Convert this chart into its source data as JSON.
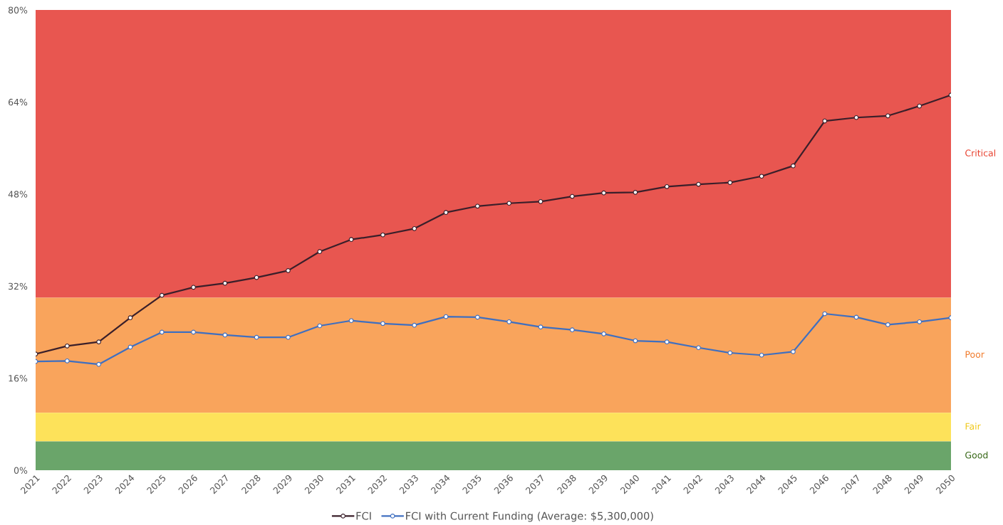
{
  "chart_data": {
    "type": "line",
    "categories": [
      "2021",
      "2022",
      "2023",
      "2024",
      "2025",
      "2026",
      "2027",
      "2028",
      "2029",
      "2030",
      "2031",
      "2032",
      "2033",
      "2034",
      "2035",
      "2036",
      "2037",
      "2038",
      "2039",
      "2040",
      "2041",
      "2042",
      "2043",
      "2044",
      "2045",
      "2046",
      "2047",
      "2048",
      "2049",
      "2050"
    ],
    "series": [
      {
        "name": "FCI",
        "color": "#3a1f2a",
        "values": [
          20.2,
          21.6,
          22.3,
          26.5,
          30.4,
          31.8,
          32.5,
          33.5,
          34.7,
          38.0,
          40.1,
          40.9,
          42.0,
          44.8,
          45.9,
          46.4,
          46.7,
          47.6,
          48.2,
          48.3,
          49.3,
          49.7,
          50.0,
          51.1,
          52.9,
          60.7,
          61.3,
          61.6,
          63.3,
          65.2
        ]
      },
      {
        "name": "FCI with Current Funding (Average: $5,300,000)",
        "color": "#3f6fc0",
        "values": [
          18.9,
          19.0,
          18.4,
          21.4,
          24.0,
          24.0,
          23.5,
          23.1,
          23.1,
          25.1,
          26.0,
          25.5,
          25.2,
          26.7,
          26.6,
          25.8,
          24.9,
          24.4,
          23.7,
          22.5,
          22.3,
          21.3,
          20.4,
          20.0,
          20.6,
          27.2,
          26.6,
          25.3,
          25.8,
          26.5
        ]
      }
    ],
    "ylim": [
      0,
      80
    ],
    "yticks": [
      {
        "value": 0,
        "label": "0%"
      },
      {
        "value": 16,
        "label": "16%"
      },
      {
        "value": 32,
        "label": "32%"
      },
      {
        "value": 48,
        "label": "48%"
      },
      {
        "value": 64,
        "label": "64%"
      },
      {
        "value": 80,
        "label": "80%"
      }
    ],
    "bands": [
      {
        "axis": "y",
        "from": 30,
        "to": 80,
        "label": "Critical",
        "color": "#e85650"
      },
      {
        "axis": "y",
        "from": 10,
        "to": 30,
        "label": "Poor",
        "color": "#f9a45c"
      },
      {
        "axis": "y",
        "from": 5,
        "to": 10,
        "label": "Fair",
        "color": "#fde25a"
      },
      {
        "axis": "y",
        "from": 0,
        "to": 5,
        "label": "Good",
        "color": "#6aa56a"
      }
    ],
    "marker": "circle",
    "line_style": "solid",
    "grid": false,
    "legend": "bottom"
  }
}
